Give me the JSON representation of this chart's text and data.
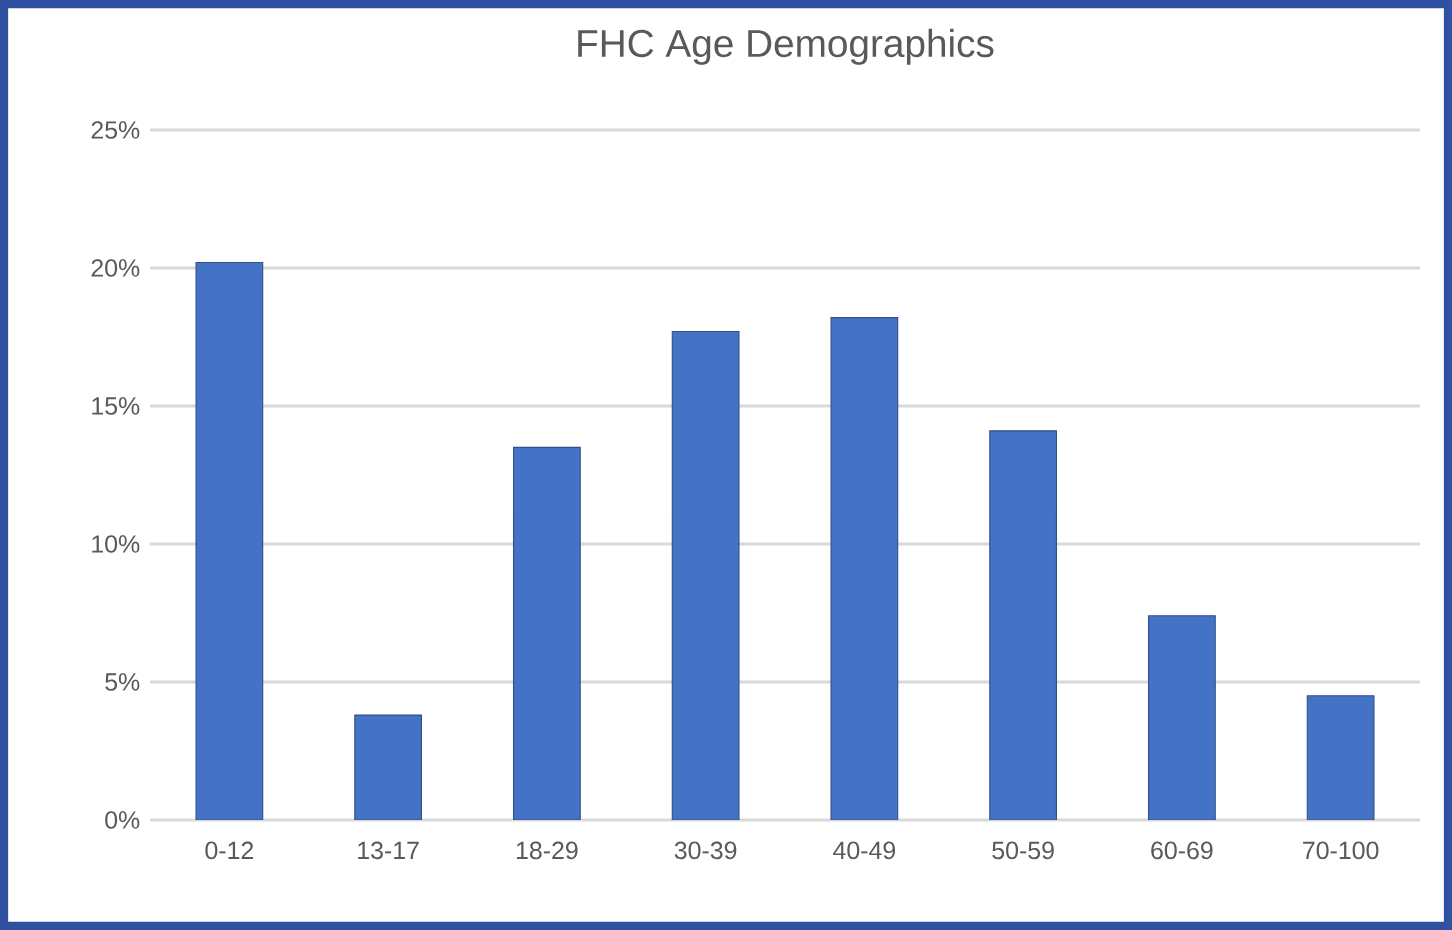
{
  "chart_data": {
    "type": "bar",
    "title": "FHC Age Demographics",
    "categories": [
      "0-12",
      "13-17",
      "18-29",
      "30-39",
      "40-49",
      "50-59",
      "60-69",
      "70-100"
    ],
    "values": [
      20.2,
      3.8,
      13.5,
      17.7,
      18.2,
      14.1,
      7.4,
      4.5
    ],
    "color": "#4472c4",
    "ylim": [
      0,
      25
    ],
    "yticks": [
      {
        "value": 0,
        "label": "0%"
      },
      {
        "value": 5,
        "label": "5%"
      },
      {
        "value": 10,
        "label": "10%"
      },
      {
        "value": 15,
        "label": "15%"
      },
      {
        "value": 20,
        "label": "20%"
      },
      {
        "value": 25,
        "label": "25%"
      }
    ],
    "grid": "y"
  }
}
